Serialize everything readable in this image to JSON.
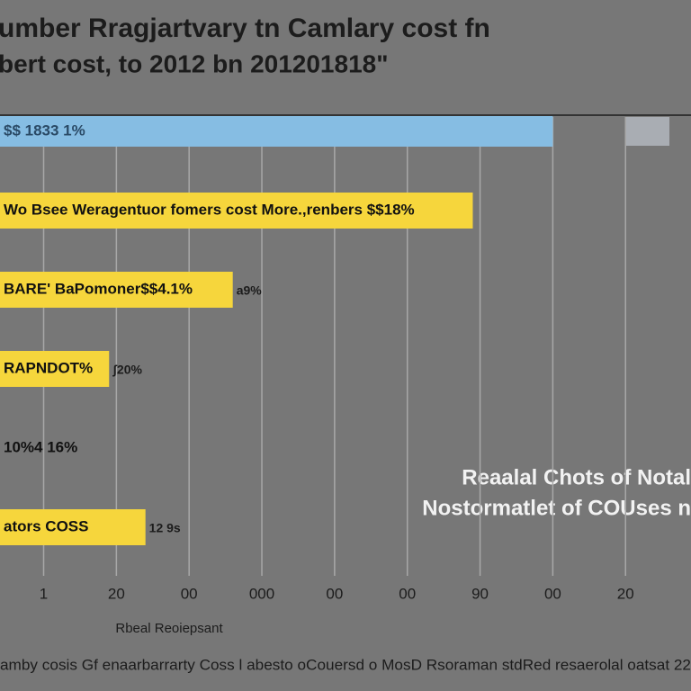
{
  "chart_data": {
    "type": "hbar",
    "title": [
      "umber Rragjartvary tn Camlary cost fn",
      "bert cost, to 2012 bn 201201818\""
    ],
    "categories": [
      "$$ 1833 1%",
      "Wo Bsee Weragentuor fomers cost More.,renbers $$18%",
      "BARE' BaPomoner$$4.1%",
      "RAPNDOT%",
      "10%4 16%",
      "ators COSS"
    ],
    "values": [
      7.0,
      5.9,
      2.6,
      0.9,
      null,
      1.4
    ],
    "colors": [
      "#86bde3",
      "#f6d63c",
      "#f6d63c",
      "#f6d63c",
      "#f6d63c",
      "#f6d63c"
    ],
    "end_labels": [
      null,
      null,
      "a9%",
      "ʃ20%",
      null,
      "12 9s"
    ],
    "xlim": [
      -0.6,
      8.9
    ],
    "xticks": [
      {
        "value": 0,
        "label": "1"
      },
      {
        "value": 1,
        "label": "20"
      },
      {
        "value": 2,
        "label": "00"
      },
      {
        "value": 3,
        "label": "000"
      },
      {
        "value": 4,
        "label": "00"
      },
      {
        "value": 5,
        "label": "00"
      },
      {
        "value": 6,
        "label": "90"
      },
      {
        "value": 7,
        "label": "00"
      },
      {
        "value": 8,
        "label": "20"
      }
    ],
    "grid": true,
    "annotation": [
      "Reaalal Chots of Notal",
      "Nostormatlet of COUses n"
    ],
    "xlabel": "Rbeal Reoiepsant",
    "footer": "amby cosis Gf enaarbarrarty Coss l abesto oCouersd o MosD Rsoraman stdRed resaerolal oatsat 22"
  }
}
